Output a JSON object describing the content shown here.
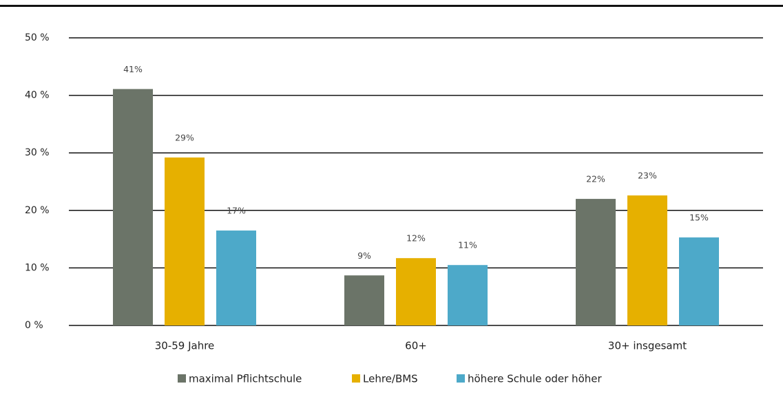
{
  "chart_data": {
    "type": "bar",
    "categories": [
      "30-59 Jahre",
      "60+",
      "30+ insgesamt"
    ],
    "series": [
      {
        "name": "maximal Pflichtschule",
        "color": "#6b7468",
        "values": [
          41.1,
          8.7,
          22.0
        ],
        "value_labels": [
          "41%",
          "9%",
          "22%"
        ]
      },
      {
        "name": "Lehre/BMS",
        "color": "#e6b000",
        "values": [
          29.2,
          11.7,
          22.6
        ],
        "value_labels": [
          "29%",
          "12%",
          "23%"
        ]
      },
      {
        "name": "höhere Schule oder höher",
        "color": "#4da9c9",
        "values": [
          16.5,
          10.5,
          15.3
        ],
        "value_labels": [
          "17%",
          "11%",
          "15%"
        ]
      }
    ],
    "ylim": [
      0,
      50
    ],
    "yticks": [
      {
        "value": 0,
        "label": "0 %"
      },
      {
        "value": 10,
        "label": "10 %"
      },
      {
        "value": 20,
        "label": "20 %"
      },
      {
        "value": 30,
        "label": "30 %"
      },
      {
        "value": 40,
        "label": "40 %"
      },
      {
        "value": 50,
        "label": "50 %"
      }
    ],
    "grid": true
  }
}
